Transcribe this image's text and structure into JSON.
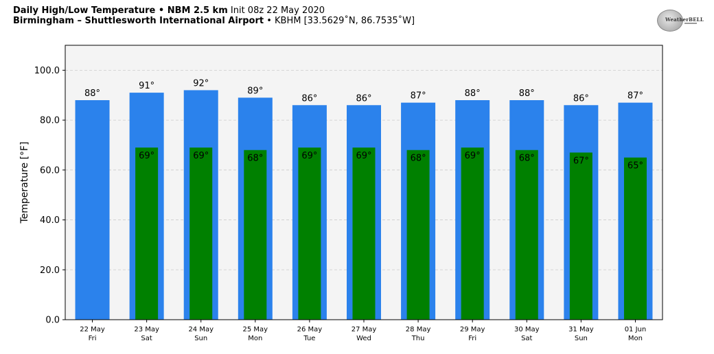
{
  "header": {
    "line1_bold": "Daily High/Low Temperature • NBM 2.5 km",
    "line1_rest": " Init 08z 22 May 2020",
    "line2_bold": "Birmingham – Shuttlesworth International Airport",
    "line2_rest": " • KBHM [33.5629˚N, 86.7535˚W]"
  },
  "logo": {
    "text_weather": "Weather",
    "text_bell": "BELL"
  },
  "colors": {
    "high": "#2b82ec",
    "low": "#008000",
    "plot_bg": "#f4f4f4",
    "grid": "#cccccc"
  },
  "chart_data": {
    "type": "bar",
    "title": "Daily High/Low Temperature • NBM 2.5 km",
    "xlabel": "",
    "ylabel": "Temperature [°F]",
    "ylim": [
      0,
      110
    ],
    "yticks": [
      "0.0",
      "20.0",
      "40.0",
      "60.0",
      "80.0",
      "100.0"
    ],
    "ytick_values": [
      0,
      20,
      40,
      60,
      80,
      100
    ],
    "grid": true,
    "categories": [
      {
        "date": "22 May",
        "day": "Fri"
      },
      {
        "date": "23 May",
        "day": "Sat"
      },
      {
        "date": "24 May",
        "day": "Sun"
      },
      {
        "date": "25 May",
        "day": "Mon"
      },
      {
        "date": "26 May",
        "day": "Tue"
      },
      {
        "date": "27 May",
        "day": "Wed"
      },
      {
        "date": "28 May",
        "day": "Thu"
      },
      {
        "date": "29 May",
        "day": "Fri"
      },
      {
        "date": "30 May",
        "day": "Sat"
      },
      {
        "date": "31 May",
        "day": "Sun"
      },
      {
        "date": "01 Jun",
        "day": "Mon"
      }
    ],
    "series": [
      {
        "name": "High",
        "values": [
          88,
          91,
          92,
          89,
          86,
          86,
          87,
          88,
          88,
          86,
          87
        ]
      },
      {
        "name": "Low",
        "values": [
          null,
          69,
          69,
          68,
          69,
          69,
          68,
          69,
          68,
          67,
          65
        ]
      }
    ],
    "degree_suffix": "°"
  }
}
